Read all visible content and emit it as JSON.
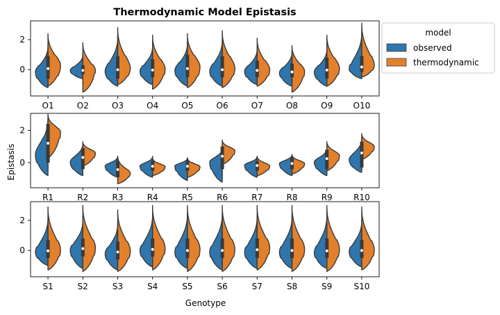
{
  "chart_data": {
    "type": "split-violin",
    "title": "Thermodynamic Model Epistasis",
    "xlabel": "Genotype",
    "ylabel": "Epistasis",
    "legend": {
      "title": "model",
      "placement": "outside-right",
      "entries": [
        {
          "name": "observed",
          "color": "#2f76ad"
        },
        {
          "name": "thermodynamic",
          "color": "#e3802b"
        }
      ]
    },
    "panels": [
      {
        "yticks": [
          0,
          2
        ],
        "ylim": [
          -1.75,
          3.25
        ],
        "categories": [
          "O1",
          "O2",
          "O3",
          "O4",
          "O5",
          "O6",
          "O7",
          "O8",
          "O9",
          "O10"
        ],
        "series": [
          {
            "name": "observed",
            "medians": [
              -0.15,
              -0.05,
              -0.1,
              -0.1,
              -0.05,
              -0.1,
              -0.1,
              -0.2,
              -0.15,
              0.05
            ],
            "min": [
              -1.2,
              -0.6,
              -1.1,
              -1.0,
              -1.1,
              -1.1,
              -1.0,
              -1.1,
              -1.1,
              -0.6
            ],
            "max": [
              1.6,
              1.0,
              2.2,
              1.6,
              1.8,
              2.0,
              1.4,
              1.2,
              1.4,
              2.5
            ],
            "q1": [
              -0.6,
              -0.3,
              -0.6,
              -0.5,
              -0.5,
              -0.5,
              -0.5,
              -0.5,
              -0.6,
              -0.15
            ],
            "q3": [
              0.3,
              0.2,
              0.4,
              0.3,
              0.5,
              0.4,
              0.3,
              0.2,
              0.3,
              0.35
            ]
          },
          {
            "name": "thermodynamic",
            "medians": [
              0.3,
              -0.05,
              0.1,
              0.05,
              0.2,
              0.1,
              0.0,
              -0.1,
              0.1,
              0.3
            ],
            "min": [
              -1.1,
              -1.5,
              -1.0,
              -1.3,
              -1.2,
              -1.2,
              -1.1,
              -1.5,
              -1.1,
              -0.5
            ],
            "max": [
              2.4,
              1.8,
              2.8,
              2.3,
              2.4,
              2.6,
              2.1,
              1.6,
              2.3,
              3.1
            ],
            "q1": [
              -0.4,
              -0.3,
              -0.4,
              -0.4,
              -0.4,
              -0.4,
              -0.4,
              -0.5,
              -0.4,
              -0.05
            ],
            "q3": [
              0.9,
              0.3,
              0.9,
              0.7,
              1.0,
              0.9,
              0.6,
              0.4,
              0.8,
              0.9
            ]
          }
        ]
      },
      {
        "yticks": [
          0,
          2
        ],
        "ylim": [
          -1.55,
          3.05
        ],
        "categories": [
          "R1",
          "R2",
          "R3",
          "R4",
          "R5",
          "R6",
          "R7",
          "R8",
          "R9",
          "R10"
        ],
        "series": [
          {
            "name": "observed",
            "medians": [
              0.5,
              0.05,
              -0.2,
              -0.2,
              -0.2,
              0.05,
              -0.15,
              -0.05,
              0.05,
              0.2
            ],
            "min": [
              -0.8,
              -0.8,
              -0.9,
              -0.9,
              -1.1,
              -1.2,
              -0.9,
              -0.8,
              -0.8,
              -0.6
            ],
            "max": [
              2.8,
              1.2,
              0.4,
              0.4,
              0.3,
              0.9,
              0.4,
              0.5,
              0.9,
              1.5
            ],
            "q1": [
              0.0,
              -0.4,
              -0.5,
              -0.5,
              -0.5,
              -0.4,
              -0.5,
              -0.4,
              -0.4,
              -0.3
            ],
            "q3": [
              1.5,
              0.7,
              0.1,
              0.1,
              0.1,
              0.7,
              0.1,
              0.3,
              0.6,
              1.1
            ]
          },
          {
            "name": "thermodynamic",
            "medians": [
              1.9,
              0.6,
              -0.65,
              -0.25,
              -0.25,
              0.75,
              -0.2,
              -0.05,
              0.45,
              1.0
            ],
            "min": [
              0.3,
              -0.2,
              -1.3,
              -0.8,
              -0.9,
              -0.1,
              -0.8,
              -0.7,
              -0.5,
              0.2
            ],
            "max": [
              3.0,
              1.3,
              0.4,
              0.3,
              0.3,
              1.4,
              0.4,
              0.5,
              1.3,
              1.8
            ],
            "q1": [
              1.5,
              0.3,
              -0.9,
              -0.5,
              -0.5,
              0.5,
              -0.45,
              -0.3,
              0.1,
              0.7
            ],
            "q3": [
              2.4,
              0.9,
              -0.4,
              0.0,
              0.0,
              1.0,
              0.05,
              0.2,
              0.8,
              1.3
            ]
          }
        ]
      },
      {
        "yticks": [
          0,
          2
        ],
        "ylim": [
          -1.75,
          3.25
        ],
        "categories": [
          "S1",
          "S2",
          "S3",
          "S4",
          "S5",
          "S6",
          "S7",
          "S8",
          "S9",
          "S10"
        ],
        "series": [
          {
            "name": "observed",
            "medians": [
              -0.1,
              0.05,
              -0.2,
              0.0,
              -0.1,
              -0.1,
              -0.1,
              -0.1,
              -0.15,
              -0.05
            ],
            "min": [
              -1.0,
              -1.2,
              -1.3,
              -1.1,
              -1.2,
              -1.3,
              -1.2,
              -1.2,
              -1.2,
              -1.1
            ],
            "max": [
              2.2,
              2.0,
              1.8,
              2.4,
              2.5,
              2.5,
              2.3,
              2.3,
              2.4,
              2.0
            ],
            "q1": [
              -0.5,
              -0.4,
              -0.6,
              -0.4,
              -0.5,
              -0.5,
              -0.5,
              -0.5,
              -0.5,
              -0.5
            ],
            "q3": [
              0.3,
              0.4,
              0.2,
              0.4,
              0.3,
              0.3,
              0.3,
              0.3,
              0.3,
              0.3
            ]
          },
          {
            "name": "thermodynamic",
            "medians": [
              0.05,
              0.2,
              0.0,
              0.15,
              0.1,
              0.1,
              0.2,
              0.1,
              0.1,
              0.05
            ],
            "min": [
              -1.3,
              -1.4,
              -1.4,
              -1.3,
              -1.4,
              -1.4,
              -1.3,
              -1.4,
              -1.4,
              -1.3
            ],
            "max": [
              2.9,
              3.0,
              2.7,
              3.0,
              3.0,
              3.0,
              3.0,
              3.0,
              3.0,
              2.9
            ],
            "q1": [
              -0.4,
              -0.3,
              -0.5,
              -0.3,
              -0.4,
              -0.4,
              -0.3,
              -0.4,
              -0.4,
              -0.4
            ],
            "q3": [
              0.7,
              0.8,
              0.6,
              0.8,
              0.8,
              0.8,
              0.8,
              0.8,
              0.8,
              0.7
            ]
          }
        ]
      }
    ]
  }
}
